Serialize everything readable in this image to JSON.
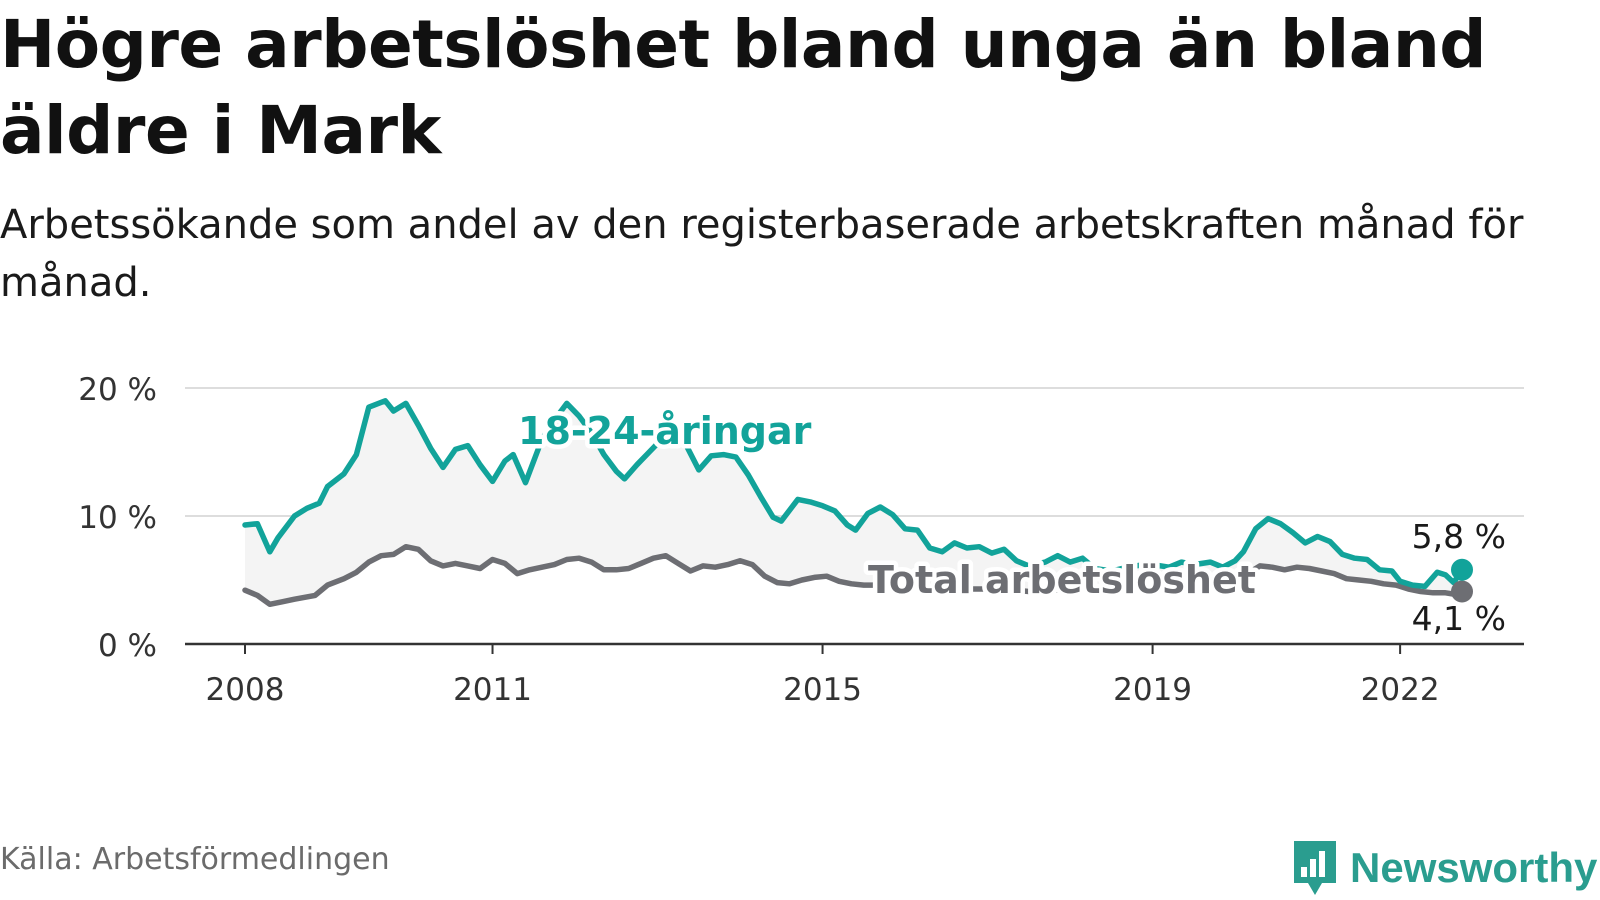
{
  "title": "Högre arbetslöshet bland unga än bland äldre i Mark",
  "subtitle": "Arbetssökande som andel av den registerbaserade arbetskraften månad för månad.",
  "source": "Källa: Arbetsförmedlingen",
  "brand": "Newsworthy",
  "colors": {
    "youth": "#12a39a",
    "total": "#6d6e73",
    "grid": "#dddddd",
    "band": "#f4f4f4",
    "axis": "#333333",
    "brand": "#2a9d8f"
  },
  "chart_data": {
    "type": "line",
    "ylim": [
      0,
      20
    ],
    "yticks": [
      {
        "value": 0,
        "label": "0 %"
      },
      {
        "value": 10,
        "label": "10 %"
      },
      {
        "value": 20,
        "label": "20 %"
      }
    ],
    "xlim": [
      2008.0,
      2022.75
    ],
    "xticks": [
      {
        "value": 2008.0,
        "label": "2008"
      },
      {
        "value": 2011.0,
        "label": "2011"
      },
      {
        "value": 2015.0,
        "label": "2015"
      },
      {
        "value": 2019.0,
        "label": "2019"
      },
      {
        "value": 2022.0,
        "label": "2022"
      }
    ],
    "grid": true,
    "series": [
      {
        "name": "18-24-åringar",
        "label": "18-24-åringar",
        "end_label": "5,8 %",
        "points": [
          [
            2008.0,
            9.3
          ],
          [
            2008.15,
            9.4
          ],
          [
            2008.3,
            7.2
          ],
          [
            2008.4,
            8.3
          ],
          [
            2008.6,
            10.0
          ],
          [
            2008.75,
            10.6
          ],
          [
            2008.9,
            11.0
          ],
          [
            2009.0,
            12.3
          ],
          [
            2009.2,
            13.3
          ],
          [
            2009.35,
            14.8
          ],
          [
            2009.5,
            18.5
          ],
          [
            2009.7,
            19.0
          ],
          [
            2009.8,
            18.2
          ],
          [
            2009.95,
            18.8
          ],
          [
            2010.1,
            17.1
          ],
          [
            2010.25,
            15.3
          ],
          [
            2010.4,
            13.8
          ],
          [
            2010.55,
            15.2
          ],
          [
            2010.7,
            15.5
          ],
          [
            2010.85,
            14.0
          ],
          [
            2011.0,
            12.7
          ],
          [
            2011.15,
            14.3
          ],
          [
            2011.25,
            14.8
          ],
          [
            2011.4,
            12.6
          ],
          [
            2011.6,
            16.0
          ],
          [
            2011.75,
            17.5
          ],
          [
            2011.9,
            18.8
          ],
          [
            2012.05,
            17.8
          ],
          [
            2012.2,
            16.5
          ],
          [
            2012.35,
            14.8
          ],
          [
            2012.5,
            13.5
          ],
          [
            2012.6,
            12.9
          ],
          [
            2012.75,
            14.0
          ],
          [
            2012.9,
            15.0
          ],
          [
            2013.05,
            16.0
          ],
          [
            2013.2,
            16.5
          ],
          [
            2013.35,
            15.5
          ],
          [
            2013.5,
            13.6
          ],
          [
            2013.65,
            14.7
          ],
          [
            2013.8,
            14.8
          ],
          [
            2013.95,
            14.6
          ],
          [
            2014.1,
            13.2
          ],
          [
            2014.25,
            11.5
          ],
          [
            2014.4,
            9.9
          ],
          [
            2014.5,
            9.6
          ],
          [
            2014.7,
            11.3
          ],
          [
            2014.85,
            11.1
          ],
          [
            2015.0,
            10.8
          ],
          [
            2015.15,
            10.4
          ],
          [
            2015.3,
            9.3
          ],
          [
            2015.4,
            8.9
          ],
          [
            2015.55,
            10.2
          ],
          [
            2015.7,
            10.7
          ],
          [
            2015.85,
            10.1
          ],
          [
            2016.0,
            9.0
          ],
          [
            2016.15,
            8.9
          ],
          [
            2016.3,
            7.5
          ],
          [
            2016.45,
            7.2
          ],
          [
            2016.6,
            7.9
          ],
          [
            2016.75,
            7.5
          ],
          [
            2016.9,
            7.6
          ],
          [
            2017.05,
            7.1
          ],
          [
            2017.2,
            7.4
          ],
          [
            2017.35,
            6.5
          ],
          [
            2017.5,
            6.1
          ],
          [
            2017.7,
            6.4
          ],
          [
            2017.85,
            6.9
          ],
          [
            2018.0,
            6.4
          ],
          [
            2018.15,
            6.7
          ],
          [
            2018.3,
            5.9
          ],
          [
            2018.5,
            5.7
          ],
          [
            2018.7,
            6.0
          ],
          [
            2018.9,
            6.2
          ],
          [
            2019.0,
            6.2
          ],
          [
            2019.2,
            6.0
          ],
          [
            2019.35,
            6.4
          ],
          [
            2019.5,
            6.2
          ],
          [
            2019.7,
            6.4
          ],
          [
            2019.85,
            6.0
          ],
          [
            2020.0,
            6.5
          ],
          [
            2020.1,
            7.2
          ],
          [
            2020.25,
            9.0
          ],
          [
            2020.4,
            9.8
          ],
          [
            2020.55,
            9.4
          ],
          [
            2020.7,
            8.7
          ],
          [
            2020.85,
            7.9
          ],
          [
            2021.0,
            8.4
          ],
          [
            2021.15,
            8.0
          ],
          [
            2021.3,
            7.0
          ],
          [
            2021.45,
            6.7
          ],
          [
            2021.6,
            6.6
          ],
          [
            2021.75,
            5.8
          ],
          [
            2021.9,
            5.7
          ],
          [
            2022.0,
            4.9
          ],
          [
            2022.15,
            4.6
          ],
          [
            2022.3,
            4.5
          ],
          [
            2022.45,
            5.6
          ],
          [
            2022.55,
            5.4
          ],
          [
            2022.65,
            4.8
          ],
          [
            2022.75,
            5.8
          ]
        ]
      },
      {
        "name": "Total arbetslöshet",
        "label": "Total arbetslöshet",
        "end_label": "4,1 %",
        "points": [
          [
            2008.0,
            4.2
          ],
          [
            2008.15,
            3.8
          ],
          [
            2008.3,
            3.1
          ],
          [
            2008.45,
            3.3
          ],
          [
            2008.6,
            3.5
          ],
          [
            2008.85,
            3.8
          ],
          [
            2009.0,
            4.6
          ],
          [
            2009.2,
            5.1
          ],
          [
            2009.35,
            5.6
          ],
          [
            2009.5,
            6.4
          ],
          [
            2009.65,
            6.9
          ],
          [
            2009.8,
            7.0
          ],
          [
            2009.95,
            7.6
          ],
          [
            2010.1,
            7.4
          ],
          [
            2010.25,
            6.5
          ],
          [
            2010.4,
            6.1
          ],
          [
            2010.55,
            6.3
          ],
          [
            2010.7,
            6.1
          ],
          [
            2010.85,
            5.9
          ],
          [
            2011.0,
            6.6
          ],
          [
            2011.15,
            6.3
          ],
          [
            2011.3,
            5.5
          ],
          [
            2011.45,
            5.8
          ],
          [
            2011.6,
            6.0
          ],
          [
            2011.75,
            6.2
          ],
          [
            2011.9,
            6.6
          ],
          [
            2012.05,
            6.7
          ],
          [
            2012.2,
            6.4
          ],
          [
            2012.35,
            5.8
          ],
          [
            2012.5,
            5.8
          ],
          [
            2012.65,
            5.9
          ],
          [
            2012.8,
            6.3
          ],
          [
            2012.95,
            6.7
          ],
          [
            2013.1,
            6.9
          ],
          [
            2013.25,
            6.3
          ],
          [
            2013.4,
            5.7
          ],
          [
            2013.55,
            6.1
          ],
          [
            2013.7,
            6.0
          ],
          [
            2013.85,
            6.2
          ],
          [
            2014.0,
            6.5
          ],
          [
            2014.15,
            6.2
          ],
          [
            2014.3,
            5.3
          ],
          [
            2014.45,
            4.8
          ],
          [
            2014.6,
            4.7
          ],
          [
            2014.75,
            5.0
          ],
          [
            2014.9,
            5.2
          ],
          [
            2015.05,
            5.3
          ],
          [
            2015.2,
            4.9
          ],
          [
            2015.35,
            4.7
          ],
          [
            2015.5,
            4.6
          ],
          [
            2015.65,
            4.6
          ],
          [
            2015.8,
            4.5
          ],
          [
            2016.0,
            4.5
          ],
          [
            2016.3,
            4.4
          ],
          [
            2016.6,
            4.3
          ],
          [
            2016.9,
            4.3
          ],
          [
            2017.2,
            4.3
          ],
          [
            2017.5,
            4.1
          ],
          [
            2017.8,
            4.2
          ],
          [
            2018.1,
            4.3
          ],
          [
            2018.4,
            4.1
          ],
          [
            2018.7,
            4.2
          ],
          [
            2019.0,
            4.3
          ],
          [
            2019.3,
            4.4
          ],
          [
            2019.6,
            4.3
          ],
          [
            2019.9,
            4.4
          ],
          [
            2020.0,
            4.6
          ],
          [
            2020.15,
            5.5
          ],
          [
            2020.3,
            6.1
          ],
          [
            2020.45,
            6.0
          ],
          [
            2020.6,
            5.8
          ],
          [
            2020.75,
            6.0
          ],
          [
            2020.9,
            5.9
          ],
          [
            2021.05,
            5.7
          ],
          [
            2021.2,
            5.5
          ],
          [
            2021.35,
            5.1
          ],
          [
            2021.5,
            5.0
          ],
          [
            2021.65,
            4.9
          ],
          [
            2021.8,
            4.7
          ],
          [
            2021.95,
            4.6
          ],
          [
            2022.1,
            4.3
          ],
          [
            2022.25,
            4.1
          ],
          [
            2022.4,
            4.0
          ],
          [
            2022.55,
            4.0
          ],
          [
            2022.65,
            3.9
          ],
          [
            2022.75,
            4.1
          ]
        ]
      }
    ]
  }
}
